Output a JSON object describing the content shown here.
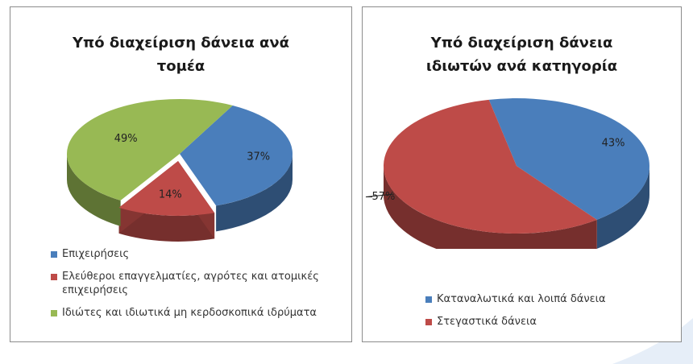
{
  "chart_data": [
    {
      "type": "pie",
      "title": "Υπό διαχείριση δάνεια ανά τομέα",
      "categories": [
        "Επιχειρήσεις",
        "Ελεύθεροι επαγγελματίες, αγρότες και ατομικές επιχειρήσεις",
        "Ιδιώτες και ιδιωτικά μη κερδοσκοπικά ιδρύματα"
      ],
      "values": [
        37,
        14,
        49
      ],
      "value_labels": [
        "37%",
        "14%",
        "49%"
      ],
      "colors": [
        "#4a7ebb",
        "#be4b48",
        "#98b954"
      ],
      "explode": [
        false,
        true,
        false
      ],
      "legend": "bottom"
    },
    {
      "type": "pie",
      "title": "Υπό διαχείριση δάνεια ιδιωτών ανά κατηγορία",
      "categories": [
        "Καταναλωτικά και λοιπά δάνεια",
        "Στεγαστικά δάνεια"
      ],
      "values": [
        43,
        57
      ],
      "value_labels": [
        "43%",
        "57%"
      ],
      "colors": [
        "#4a7ebb",
        "#be4b48"
      ],
      "explode": [
        false,
        false
      ],
      "legend": "bottom"
    }
  ]
}
